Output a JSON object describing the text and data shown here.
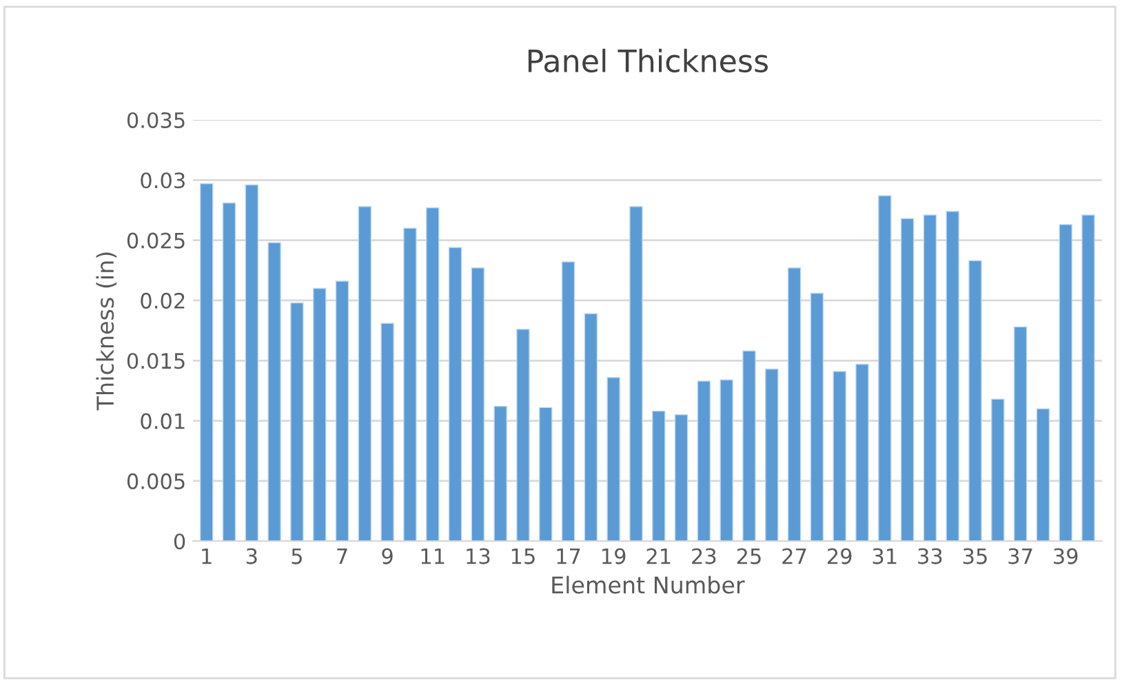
{
  "chart_data": {
    "type": "bar",
    "title": "Panel Thickness",
    "xlabel": "Element Number",
    "ylabel": "Thickness (in)",
    "categories": [
      "1",
      null,
      "3",
      null,
      "5",
      null,
      "7",
      null,
      "9",
      null,
      "11",
      null,
      "13",
      null,
      "15",
      null,
      "17",
      null,
      "19",
      null,
      "21",
      null,
      "23",
      null,
      "25",
      null,
      "27",
      null,
      "29",
      null,
      "31",
      null,
      "33",
      null,
      "35",
      null,
      "37",
      null,
      "39",
      null
    ],
    "values": [
      0.0297,
      0.0281,
      0.0296,
      0.0248,
      0.0198,
      0.021,
      0.0216,
      0.0278,
      0.0181,
      0.026,
      0.0277,
      0.0244,
      0.0227,
      0.0112,
      0.0176,
      0.0111,
      0.0232,
      0.0189,
      0.0136,
      0.0278,
      0.0108,
      0.0105,
      0.0133,
      0.0134,
      0.0158,
      0.0143,
      0.0227,
      0.0206,
      0.0141,
      0.0147,
      0.0287,
      0.0268,
      0.0271,
      0.0274,
      0.0233,
      0.0118,
      0.0178,
      0.011,
      0.0263,
      0.0271
    ],
    "color": "#5b9bd5",
    "ylim": [
      0,
      0.035
    ],
    "yticks": [
      0,
      0.005,
      0.01,
      0.015,
      0.02,
      0.025,
      0.03,
      0.035
    ],
    "grid": "y",
    "legend": false
  }
}
